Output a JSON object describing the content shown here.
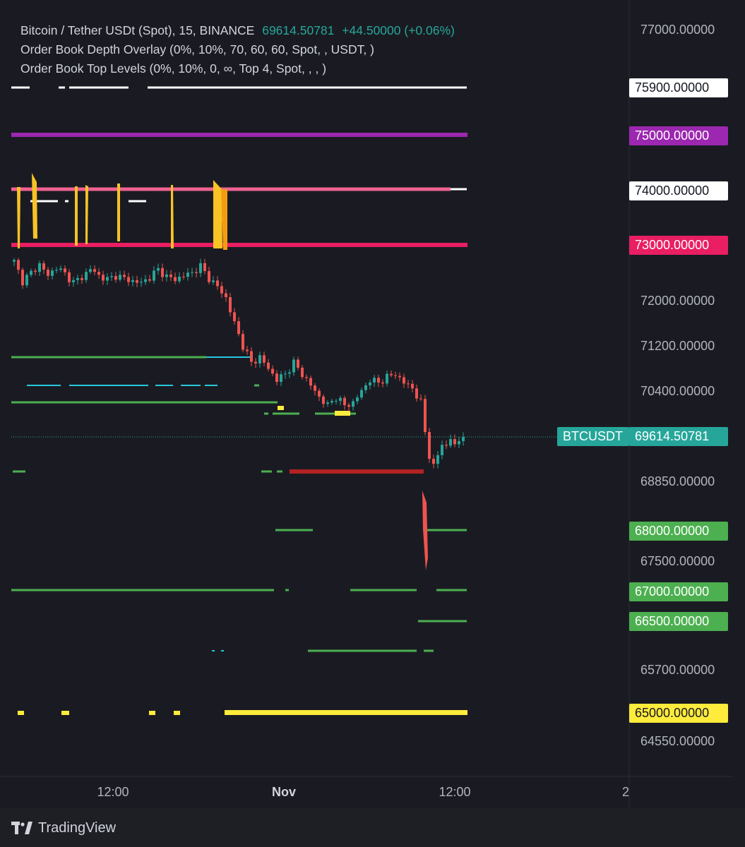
{
  "legend": {
    "title": "Bitcoin / Tether USDt (Spot), 15, BINANCE",
    "price": "69614.50781",
    "change": "+44.50000 (+0.06%)",
    "indicator_1": "Order Book Depth Overlay (0%, 10%, 70, 60, 60, Spot, , USDT, )",
    "indicator_2": "Order Book Top Levels (0%, 10%, 0, ∞, Top 4, Spot, , , )"
  },
  "branding": {
    "name": "TradingView",
    "logo_icon": "tradingview-logo-icon"
  },
  "colors": {
    "background": "#1a1b22",
    "up": "#26a69a",
    "down": "#ef5350",
    "level_white": "#ffffff",
    "level_purple": "#9c27b0",
    "level_pink": "#f06292",
    "level_red": "#e91e63",
    "level_green": "#4caf50",
    "level_yellow": "#ffeb3b",
    "level_blue": "#26c6da"
  },
  "chart_data": {
    "type": "candlestick",
    "symbol": "BTCUSDT",
    "last_price": 69614.50781,
    "y_ticks": [
      "77000.00000",
      "72000.00000",
      "71200.00000",
      "70400.00000",
      "68850.00000",
      "67500.00000",
      "65700.00000",
      "64550.00000"
    ],
    "x_ticks": [
      "12:00",
      "Nov",
      "12:00",
      "2"
    ],
    "price_tags": [
      {
        "label": "75900.00000",
        "value": 75900,
        "color": "#ffffff",
        "text_color": "#131722"
      },
      {
        "label": "75000.00000",
        "value": 75000,
        "color": "#9c27b0",
        "text_color": "#ffffff"
      },
      {
        "label": "74000.00000",
        "value": 74000,
        "color": "#ffffff",
        "text_color": "#131722"
      },
      {
        "label": "73000.00000",
        "value": 73000,
        "color": "#e91e63",
        "text_color": "#ffffff"
      },
      {
        "label": "68000.00000",
        "value": 68000,
        "color": "#4caf50",
        "text_color": "#ffffff"
      },
      {
        "label": "67000.00000",
        "value": 67000,
        "color": "#4caf50",
        "text_color": "#ffffff"
      },
      {
        "label": "66500.00000",
        "value": 66500,
        "color": "#4caf50",
        "text_color": "#ffffff"
      },
      {
        "label": "65000.00000",
        "value": 65000,
        "color": "#ffeb3b",
        "text_color": "#131722"
      }
    ],
    "symbol_tag": "BTCUSDT",
    "last_price_tag": "69614.50781",
    "close_path": [
      [
        0,
        72700
      ],
      [
        2,
        72350
      ],
      [
        4,
        72500
      ],
      [
        6,
        72650
      ],
      [
        8,
        72450
      ],
      [
        10,
        72600
      ],
      [
        12,
        72480
      ],
      [
        14,
        72330
      ],
      [
        16,
        72420
      ],
      [
        18,
        72570
      ],
      [
        20,
        72450
      ],
      [
        22,
        72380
      ],
      [
        24,
        72450
      ],
      [
        26,
        72400
      ],
      [
        28,
        72350
      ],
      [
        30,
        72320
      ],
      [
        32,
        72420
      ],
      [
        34,
        72560
      ],
      [
        36,
        72430
      ],
      [
        38,
        72380
      ],
      [
        40,
        72450
      ],
      [
        42,
        72500
      ],
      [
        44,
        72620
      ],
      [
        46,
        72400
      ],
      [
        48,
        72250
      ],
      [
        50,
        72050
      ],
      [
        52,
        71600
      ],
      [
        54,
        71200
      ],
      [
        56,
        70900
      ],
      [
        58,
        71000
      ],
      [
        60,
        70800
      ],
      [
        62,
        70600
      ],
      [
        64,
        70700
      ],
      [
        66,
        70900
      ],
      [
        68,
        70700
      ],
      [
        70,
        70500
      ],
      [
        72,
        70300
      ],
      [
        74,
        70150
      ],
      [
        76,
        70300
      ],
      [
        78,
        70150
      ],
      [
        80,
        70200
      ],
      [
        82,
        70400
      ],
      [
        84,
        70600
      ],
      [
        86,
        70550
      ],
      [
        88,
        70650
      ],
      [
        90,
        70700
      ],
      [
        92,
        70550
      ],
      [
        94,
        70450
      ],
      [
        96,
        70200
      ],
      [
        97,
        69700
      ],
      [
        98,
        69300
      ],
      [
        99,
        69100
      ],
      [
        100,
        69300
      ],
      [
        101,
        69500
      ],
      [
        102,
        69450
      ],
      [
        103,
        69600
      ],
      [
        104,
        69450
      ],
      [
        105,
        69550
      ],
      [
        106,
        69614
      ]
    ]
  }
}
